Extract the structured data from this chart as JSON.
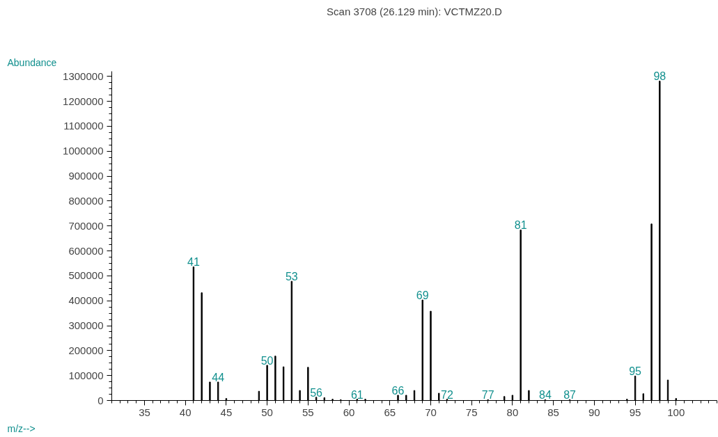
{
  "chart_data": {
    "type": "bar",
    "title": "Scan 3708 (26.129 min): VCTMZ20.D",
    "xlabel": "m/z-->",
    "ylabel": "Abundance",
    "x": [
      41,
      42,
      43,
      44,
      45,
      49,
      50,
      51,
      52,
      53,
      54,
      55,
      56,
      57,
      58,
      59,
      61,
      62,
      66,
      67,
      68,
      69,
      70,
      71,
      72,
      77,
      79,
      80,
      81,
      82,
      84,
      87,
      94,
      95,
      96,
      97,
      98,
      99,
      100
    ],
    "values": [
      536000,
      432000,
      74000,
      74000,
      8000,
      37000,
      141000,
      178000,
      135000,
      478000,
      40000,
      133000,
      13000,
      11000,
      5000,
      3000,
      5000,
      5000,
      21000,
      21000,
      40000,
      403000,
      358000,
      29000,
      5000,
      3000,
      16000,
      21000,
      684000,
      40000,
      3000,
      3000,
      5000,
      98000,
      27000,
      708000,
      1281000,
      82000,
      8000
    ],
    "color": "#000000",
    "xlim": [
      31,
      105
    ],
    "xticks": [
      35,
      40,
      45,
      50,
      55,
      60,
      65,
      70,
      75,
      80,
      85,
      90,
      95,
      100
    ],
    "ylim": [
      0,
      1320000
    ],
    "yticks": [
      0,
      100000,
      200000,
      300000,
      400000,
      500000,
      600000,
      700000,
      800000,
      900000,
      1000000,
      1100000,
      1200000,
      1300000
    ],
    "grid": false,
    "annotations": [
      {
        "text": "41",
        "x": 41,
        "y": 536000
      },
      {
        "text": "44",
        "x": 44,
        "y": 74000
      },
      {
        "text": "50",
        "x": 50,
        "y": 141000
      },
      {
        "text": "53",
        "x": 53,
        "y": 478000
      },
      {
        "text": "56",
        "x": 56,
        "y": 13000
      },
      {
        "text": "61",
        "x": 61,
        "y": 5000
      },
      {
        "text": "66",
        "x": 66,
        "y": 21000
      },
      {
        "text": "69",
        "x": 69,
        "y": 403000
      },
      {
        "text": "72",
        "x": 72,
        "y": 5000
      },
      {
        "text": "77",
        "x": 77,
        "y": 3000
      },
      {
        "text": "81",
        "x": 81,
        "y": 684000
      },
      {
        "text": "84",
        "x": 84,
        "y": 3000
      },
      {
        "text": "87",
        "x": 87,
        "y": 3000
      },
      {
        "text": "95",
        "x": 95,
        "y": 98000
      },
      {
        "text": "98",
        "x": 98,
        "y": 1281000
      }
    ]
  }
}
